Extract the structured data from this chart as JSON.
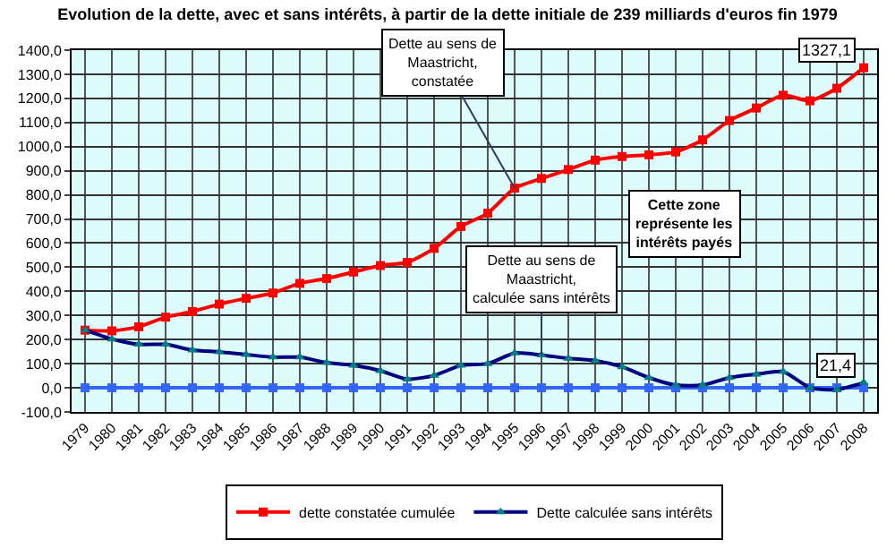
{
  "chart_data": {
    "type": "line",
    "title": "Evolution de la dette, avec et sans intérêts, à partir de la dette initiale de 239 milliards d'euros fin 1979",
    "categories": [
      "1979",
      "1980",
      "1981",
      "1982",
      "1983",
      "1984",
      "1985",
      "1986",
      "1987",
      "1988",
      "1989",
      "1990",
      "1991",
      "1992",
      "1993",
      "1994",
      "1995",
      "1996",
      "1997",
      "1998",
      "1999",
      "2000",
      "2001",
      "2002",
      "2003",
      "2004",
      "2005",
      "2006",
      "2007",
      "2008"
    ],
    "series": [
      {
        "color": "#3366ff",
        "marker": "square",
        "values": [
          0,
          0,
          0,
          0,
          0,
          0,
          0,
          0,
          0,
          0,
          0,
          0,
          0,
          0,
          0,
          0,
          0,
          0,
          0,
          0,
          0,
          0,
          0,
          0,
          0,
          0,
          0,
          0,
          0,
          0
        ]
      },
      {
        "name": "dette constatée cumulée",
        "color": "#ff0000",
        "marker": "square",
        "values": [
          239,
          236,
          253,
          293,
          316,
          347,
          371,
          393,
          433,
          453,
          480,
          507,
          520,
          578,
          669,
          724,
          828,
          868,
          905,
          944,
          959,
          966,
          978,
          1028,
          1108,
          1160,
          1213,
          1190,
          1242,
          1327.1
        ],
        "value_labels": [
          null,
          null,
          null,
          null,
          null,
          null,
          null,
          null,
          null,
          null,
          null,
          null,
          null,
          null,
          null,
          null,
          null,
          null,
          null,
          null,
          null,
          null,
          null,
          null,
          null,
          null,
          null,
          null,
          null,
          "1327,1"
        ]
      },
      {
        "name": "Dette calculée sans intérêts",
        "color": "#000080",
        "marker": "triangle",
        "values": [
          239,
          202,
          180,
          180,
          156,
          149,
          138,
          127,
          127,
          104,
          93,
          71,
          36,
          51,
          93,
          100,
          144,
          136,
          122,
          113,
          87,
          42,
          11,
          11,
          42,
          56,
          67,
          0,
          -7,
          21.4
        ],
        "value_labels": [
          null,
          null,
          null,
          null,
          null,
          null,
          null,
          null,
          null,
          null,
          null,
          null,
          null,
          null,
          null,
          null,
          null,
          null,
          null,
          null,
          null,
          null,
          null,
          null,
          null,
          null,
          null,
          null,
          null,
          "21,4"
        ]
      }
    ],
    "ylim": [
      -100,
      1400
    ],
    "yticks": [
      {
        "value": -100,
        "label": "-100,0"
      },
      {
        "value": 0,
        "label": "0,0"
      },
      {
        "value": 100,
        "label": "100,0"
      },
      {
        "value": 200,
        "label": "200,0"
      },
      {
        "value": 300,
        "label": "300,0"
      },
      {
        "value": 400,
        "label": "400,0"
      },
      {
        "value": 500,
        "label": "500,0"
      },
      {
        "value": 600,
        "label": "600,0"
      },
      {
        "value": 700,
        "label": "700,0"
      },
      {
        "value": 800,
        "label": "800,0"
      },
      {
        "value": 900,
        "label": "900,0"
      },
      {
        "value": 1000,
        "label": "1000,0"
      },
      {
        "value": 1100,
        "label": "1100,0"
      },
      {
        "value": 1200,
        "label": "1200,0"
      },
      {
        "value": 1300,
        "label": "1300,0"
      },
      {
        "value": 1400,
        "label": "1400,0"
      }
    ],
    "annotations": [
      {
        "text": "Dette au sens de\nMaastricht,\nconstatée",
        "x": "1995",
        "y": 828
      },
      {
        "text": "Dette au sens de\nMaastricht,\ncalculée sans intérêts",
        "x": "1996",
        "y": 136
      },
      "Cette zone\nreprésente les\nintérêts payés"
    ],
    "grid": true,
    "legend": "bottom",
    "line_style": "solid"
  }
}
